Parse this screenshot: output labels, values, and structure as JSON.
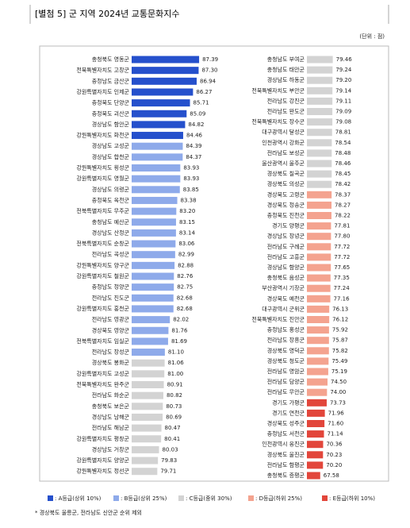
{
  "title": "[별첨 5] 군 지역 2024년 교통문화지수",
  "unit": "(단위 : 점)",
  "chart_data": [
    {
      "type": "bar",
      "orientation": "horizontal",
      "xlim": [
        75,
        90
      ],
      "categories": [
        "충청북도 영동군",
        "전북특별자치도 고창군",
        "충청남도 금산군",
        "강원특별자치도 인제군",
        "충청북도 단양군",
        "충청북도 괴산군",
        "경상남도 함안군",
        "강원특별자치도 화천군",
        "경상남도 고성군",
        "경상남도 합천군",
        "강원특별자치도 횡성군",
        "강원특별자치도 영월군",
        "경상남도 의령군",
        "충청북도 옥천군",
        "전북특별자치도 무주군",
        "충청남도 예산군",
        "경상남도 산청군",
        "전북특별자치도 순창군",
        "전라남도 곡성군",
        "강원특별자치도 양구군",
        "강원특별자치도 철원군",
        "충청남도 청양군",
        "전라남도 진도군",
        "강원특별자치도 홍천군",
        "전라남도 영광군",
        "경상북도 영양군",
        "전북특별자치도 임실군",
        "전라남도 장성군",
        "경상북도 봉화군",
        "강원특별자치도 고성군",
        "전북특별자치도 완주군",
        "전라남도 화순군",
        "충청북도 보은군",
        "경상남도 남해군",
        "전라남도 해남군",
        "강원특별자치도 평창군",
        "경상남도 거창군",
        "강원특별자치도 양양군",
        "강원특별자치도 정선군"
      ],
      "values": [
        87.39,
        87.3,
        86.94,
        86.27,
        85.71,
        85.09,
        84.82,
        84.46,
        84.39,
        84.37,
        83.93,
        83.93,
        83.85,
        83.38,
        83.2,
        83.15,
        83.14,
        83.06,
        82.99,
        82.88,
        82.76,
        82.75,
        82.68,
        82.68,
        82.02,
        81.76,
        81.69,
        81.1,
        81.06,
        81.0,
        80.91,
        80.82,
        80.73,
        80.69,
        80.47,
        80.41,
        80.03,
        79.83,
        79.71
      ],
      "value_labels": [
        "87.39",
        "87.30",
        "86.94",
        "86.27",
        "85.71",
        "85.09",
        "84.82",
        "84.46",
        "84.39",
        "84.37",
        "83.93",
        "83.93",
        "83.85",
        "83.38",
        "83.20",
        "83.15",
        "83.14",
        "83.06",
        "82.99",
        "82.88",
        "82.76",
        "82.75",
        "82.68",
        "82.68",
        "82.02",
        "81.76",
        "81.69",
        "81.10",
        "81.06",
        "81.00",
        "80.91",
        "80.82",
        "80.73",
        "80.69",
        "80.47",
        "80.41",
        "80.03",
        "79.83",
        "79.71"
      ],
      "colors": [
        "#2550cc",
        "#2550cc",
        "#2550cc",
        "#2550cc",
        "#2550cc",
        "#2550cc",
        "#2550cc",
        "#2550cc",
        "#8eaaea",
        "#8eaaea",
        "#8eaaea",
        "#8eaaea",
        "#8eaaea",
        "#8eaaea",
        "#8eaaea",
        "#8eaaea",
        "#8eaaea",
        "#8eaaea",
        "#8eaaea",
        "#8eaaea",
        "#8eaaea",
        "#8eaaea",
        "#8eaaea",
        "#8eaaea",
        "#8eaaea",
        "#8eaaea",
        "#8eaaea",
        "#8eaaea",
        "#d3d3d3",
        "#d3d3d3",
        "#d3d3d3",
        "#d3d3d3",
        "#d3d3d3",
        "#d3d3d3",
        "#d3d3d3",
        "#d3d3d3",
        "#d3d3d3",
        "#d3d3d3",
        "#d3d3d3"
      ]
    },
    {
      "type": "bar",
      "orientation": "horizontal",
      "xlim": [
        55,
        85
      ],
      "categories": [
        "충청남도 부여군",
        "충청남도 태안군",
        "경상남도 하동군",
        "전북특별자치도 부안군",
        "전라남도 강진군",
        "전라남도 완도군",
        "전북특별자치도 장수군",
        "대구광역시 달성군",
        "인천광역시 강화군",
        "전라남도 보성군",
        "울산광역시 울주군",
        "경상북도 칠곡군",
        "경상북도 의성군",
        "경상북도 고령군",
        "경상북도 청송군",
        "충청북도 진천군",
        "경기도 양평군",
        "경상남도 창녕군",
        "전라남도 구례군",
        "전라남도 고흥군",
        "경상남도 함양군",
        "충청북도 음성군",
        "부산광역시 기장군",
        "경상북도 예천군",
        "대구광역시 군위군",
        "전북특별자치도 진안군",
        "충청남도 홍성군",
        "전라남도 장흥군",
        "경상북도 영덕군",
        "경상북도 청도군",
        "전라남도 영암군",
        "전라남도 담양군",
        "전라남도 무안군",
        "경기도 가평군",
        "경기도 연천군",
        "경상북도 성주군",
        "충청남도 서천군",
        "인천광역시 옹진군",
        "경상북도 울진군",
        "전라남도 함평군",
        "충청북도 증평군"
      ],
      "values": [
        79.46,
        79.24,
        79.2,
        79.14,
        79.11,
        79.09,
        79.08,
        78.81,
        78.54,
        78.48,
        78.46,
        78.45,
        78.42,
        78.37,
        78.27,
        78.22,
        77.81,
        77.8,
        77.72,
        77.72,
        77.65,
        77.35,
        77.24,
        77.16,
        76.13,
        76.12,
        75.92,
        75.87,
        75.82,
        75.49,
        75.19,
        74.5,
        74.0,
        73.73,
        71.96,
        71.6,
        71.14,
        70.36,
        70.23,
        70.2,
        67.58
      ],
      "value_labels": [
        "79.46",
        "79.24",
        "79.20",
        "79.14",
        "79.11",
        "79.09",
        "79.08",
        "78.81",
        "78.54",
        "78.48",
        "78.46",
        "78.45",
        "78.42",
        "78.37",
        "78.27",
        "78.22",
        "77.81",
        "77.80",
        "77.72",
        "77.72",
        "77.65",
        "77.35",
        "77.24",
        "77.16",
        "76.13",
        "76.12",
        "75.92",
        "75.87",
        "75.82",
        "75.49",
        "75.19",
        "74.50",
        "74.00",
        "73.73",
        "71.96",
        "71.60",
        "71.14",
        "70.36",
        "70.23",
        "70.20",
        "67.58"
      ],
      "colors": [
        "#d3d3d3",
        "#d3d3d3",
        "#d3d3d3",
        "#d3d3d3",
        "#d3d3d3",
        "#d3d3d3",
        "#d3d3d3",
        "#d3d3d3",
        "#d3d3d3",
        "#d3d3d3",
        "#d3d3d3",
        "#d3d3d3",
        "#d3d3d3",
        "#f4a38f",
        "#f4a38f",
        "#f4a38f",
        "#f4a38f",
        "#f4a38f",
        "#f4a38f",
        "#f4a38f",
        "#f4a38f",
        "#f4a38f",
        "#f4a38f",
        "#f4a38f",
        "#f4a38f",
        "#f4a38f",
        "#f4a38f",
        "#f4a38f",
        "#f4a38f",
        "#f4a38f",
        "#f4a38f",
        "#f4a38f",
        "#f4a38f",
        "#e2463b",
        "#e2463b",
        "#e2463b",
        "#e2463b",
        "#e2463b",
        "#e2463b",
        "#e2463b",
        "#e2463b"
      ]
    }
  ],
  "legend": [
    {
      "label": ": A등급(상위 10%)",
      "color": "#2550cc"
    },
    {
      "label": ": B등급(상위 25%)",
      "color": "#8eaaea"
    },
    {
      "label": ": C등급(중위 30%)",
      "color": "#d3d3d3"
    },
    {
      "label": ": D등급(하위 25%)",
      "color": "#f4a38f"
    },
    {
      "label": ": E등급(하위 10%)",
      "color": "#e2463b"
    }
  ],
  "footnote": "* 경상북도 울릉군, 전라남도 신안군 순위 제외"
}
